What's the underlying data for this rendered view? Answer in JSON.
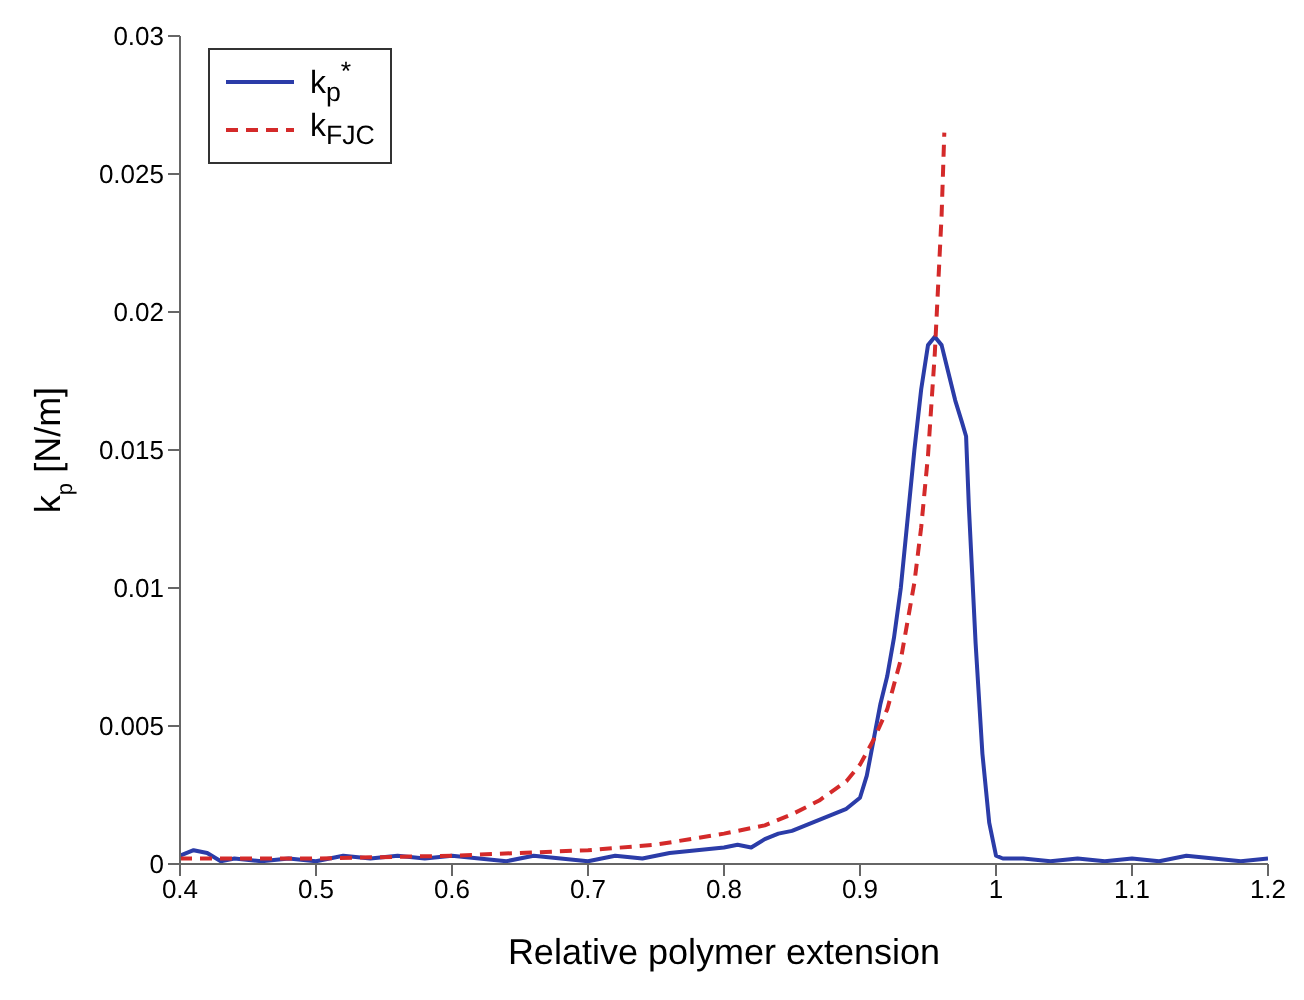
{
  "chart_data": {
    "type": "line",
    "xlabel": "Relative polymer extension",
    "ylabel": "k$_{p}$ [N/m]",
    "xlim": [
      0.4,
      1.2
    ],
    "xticks": [
      0.4,
      0.5,
      0.6,
      0.7,
      0.8,
      0.9,
      1,
      1.1,
      1.2
    ],
    "ylim": [
      0,
      0.03
    ],
    "yticks": [
      0,
      0.005,
      0.01,
      0.015,
      0.02,
      0.025,
      0.03
    ],
    "grid": false,
    "legend": "top left",
    "marker": "none",
    "series": [
      {
        "name": "k$_{p}$$^{*}$",
        "color": "#2b3ca8",
        "line_style": "solid",
        "x": [
          0.4,
          0.41,
          0.42,
          0.43,
          0.44,
          0.46,
          0.48,
          0.5,
          0.52,
          0.54,
          0.56,
          0.58,
          0.6,
          0.62,
          0.64,
          0.66,
          0.68,
          0.7,
          0.72,
          0.74,
          0.76,
          0.78,
          0.8,
          0.81,
          0.82,
          0.83,
          0.84,
          0.85,
          0.86,
          0.87,
          0.88,
          0.89,
          0.9,
          0.905,
          0.91,
          0.915,
          0.92,
          0.925,
          0.93,
          0.935,
          0.94,
          0.945,
          0.95,
          0.955,
          0.96,
          0.965,
          0.97,
          0.975,
          0.978,
          0.98,
          0.985,
          0.99,
          0.995,
          1,
          1.005,
          1.02,
          1.04,
          1.06,
          1.08,
          1.1,
          1.12,
          1.14,
          1.16,
          1.18,
          1.2
        ],
        "values": [
          0.0003,
          0.0005,
          0.0004,
          0.0001,
          0.0002,
          0.0001,
          0.0002,
          0.0001,
          0.0003,
          0.0002,
          0.0003,
          0.0002,
          0.0003,
          0.0002,
          0.0001,
          0.0003,
          0.0002,
          0.0001,
          0.0003,
          0.0002,
          0.0004,
          0.0005,
          0.0006,
          0.0007,
          0.0006,
          0.0009,
          0.0011,
          0.0012,
          0.0014,
          0.0016,
          0.0018,
          0.002,
          0.0024,
          0.0032,
          0.0045,
          0.0058,
          0.0068,
          0.0082,
          0.01,
          0.0125,
          0.015,
          0.0172,
          0.0188,
          0.0191,
          0.0188,
          0.0178,
          0.0168,
          0.016,
          0.0155,
          0.013,
          0.008,
          0.004,
          0.0015,
          0.0003,
          0.0002,
          0.0002,
          0.0001,
          0.0002,
          0.0001,
          0.0002,
          0.0001,
          0.0003,
          0.0002,
          0.0001,
          0.0002
        ]
      },
      {
        "name": "k$_{FJC}$",
        "color": "#d42a2a",
        "line_style": "dashed",
        "x": [
          0.4,
          0.5,
          0.6,
          0.65,
          0.7,
          0.75,
          0.8,
          0.83,
          0.85,
          0.87,
          0.89,
          0.9,
          0.91,
          0.92,
          0.93,
          0.94,
          0.945,
          0.95,
          0.955,
          0.96,
          0.962
        ],
        "values": [
          0.0002,
          0.0002,
          0.0003,
          0.0004,
          0.0005,
          0.0007,
          0.0011,
          0.0014,
          0.0018,
          0.0023,
          0.003,
          0.0036,
          0.0045,
          0.0056,
          0.0074,
          0.0102,
          0.0122,
          0.0148,
          0.0185,
          0.0235,
          0.0265
        ]
      }
    ]
  }
}
